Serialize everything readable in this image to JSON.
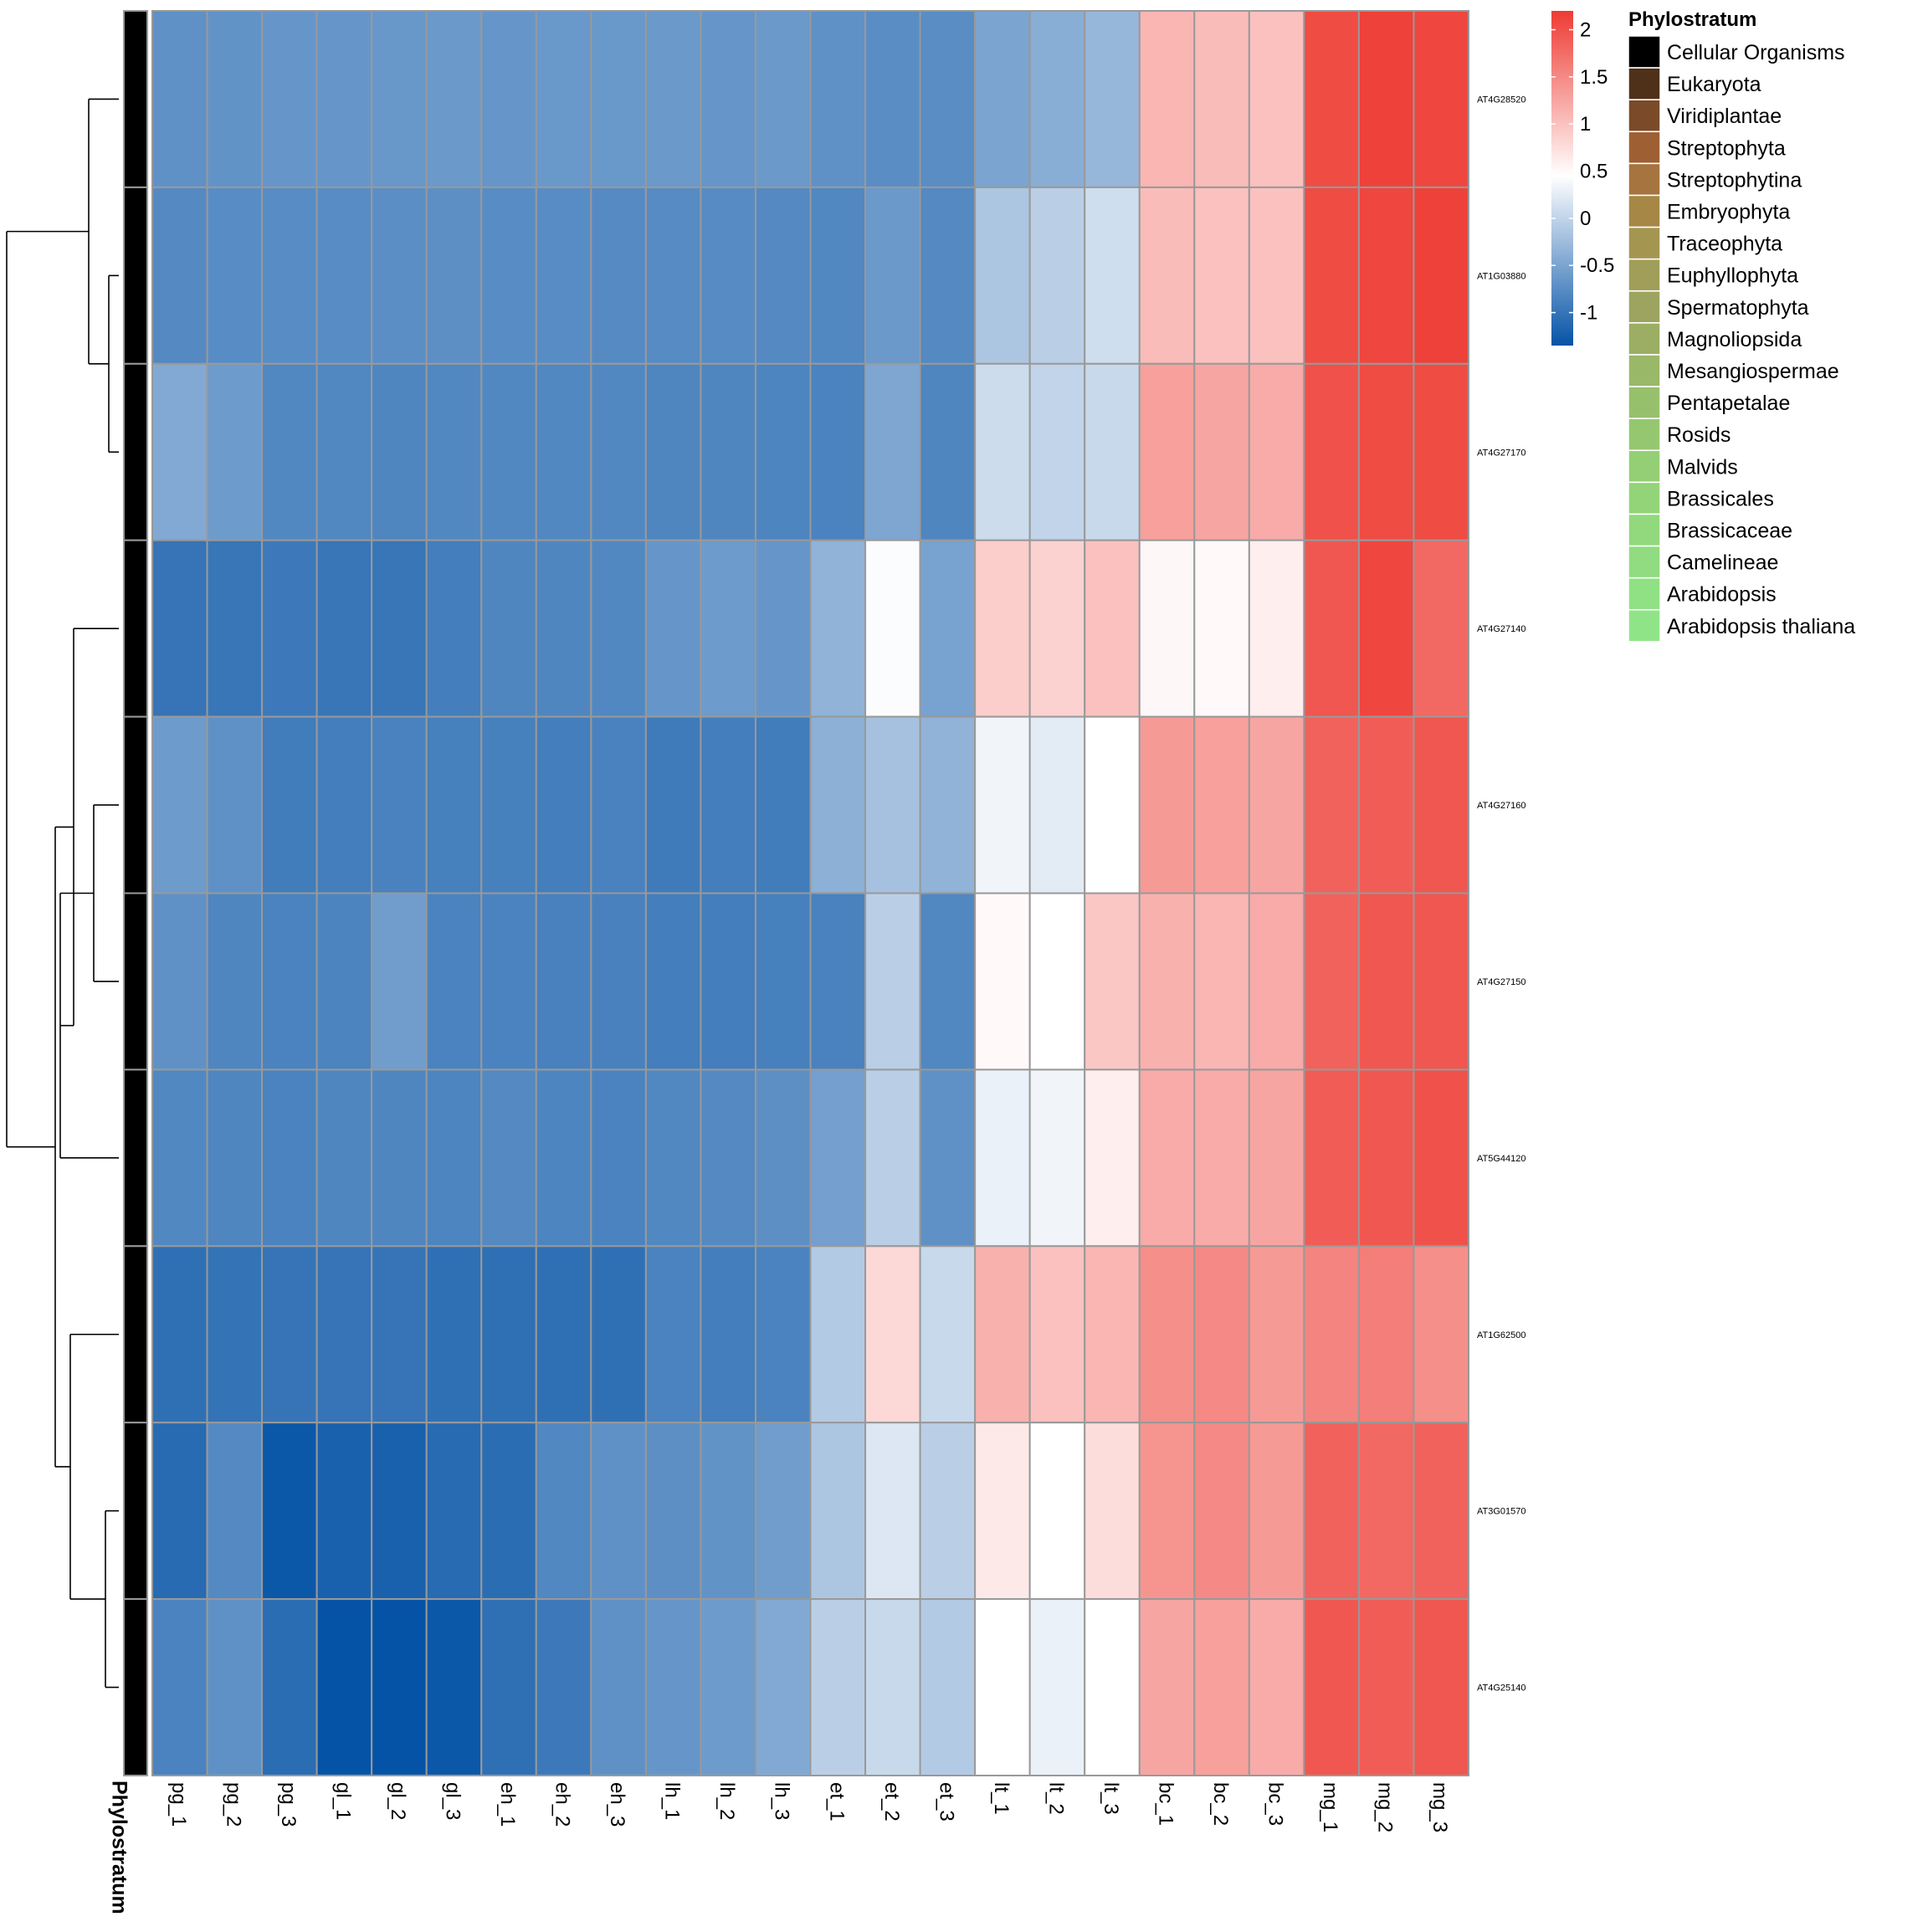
{
  "chart_data": {
    "type": "heatmap",
    "title": "",
    "columns": [
      "pg_1",
      "pg_2",
      "pg_3",
      "gl_1",
      "gl_2",
      "gl_3",
      "eh_1",
      "eh_2",
      "eh_3",
      "lh_1",
      "lh_2",
      "lh_3",
      "et_1",
      "et_2",
      "et_3",
      "lt_1",
      "lt_2",
      "lt_3",
      "bc_1",
      "bc_2",
      "bc_3",
      "mg_1",
      "mg_2",
      "mg_3"
    ],
    "rows": [
      "AT4G28520",
      "AT1G03880",
      "AT4G27170",
      "AT4G27140",
      "AT4G27160",
      "AT4G27150",
      "AT5G44120",
      "AT1G62500",
      "AT3G01570",
      "AT4G25140"
    ],
    "values": [
      [
        -0.7,
        -0.68,
        -0.65,
        -0.65,
        -0.64,
        -0.62,
        -0.65,
        -0.63,
        -0.63,
        -0.62,
        -0.65,
        -0.62,
        -0.7,
        -0.74,
        -0.74,
        -0.5,
        -0.4,
        -0.3,
        1.1,
        1.05,
        1.0,
        2.05,
        2.15,
        2.1
      ],
      [
        -0.78,
        -0.75,
        -0.75,
        -0.75,
        -0.73,
        -0.72,
        -0.75,
        -0.75,
        -0.77,
        -0.76,
        -0.76,
        -0.78,
        -0.8,
        -0.62,
        -0.78,
        -0.15,
        -0.05,
        0.1,
        1.05,
        1.0,
        1.0,
        2.05,
        2.1,
        2.15
      ],
      [
        -0.45,
        -0.6,
        -0.8,
        -0.8,
        -0.82,
        -0.8,
        -0.8,
        -0.8,
        -0.8,
        -0.82,
        -0.82,
        -0.83,
        -0.85,
        -0.48,
        -0.82,
        0.08,
        0.0,
        0.05,
        1.3,
        1.25,
        1.2,
        2.0,
        2.05,
        2.05
      ],
      [
        -1.0,
        -0.98,
        -0.95,
        -0.98,
        -0.98,
        -0.9,
        -0.82,
        -0.82,
        -0.8,
        -0.65,
        -0.6,
        -0.65,
        -0.35,
        0.42,
        -0.52,
        0.9,
        0.85,
        1.0,
        0.52,
        0.5,
        0.6,
        1.95,
        2.1,
        1.8
      ],
      [
        -0.6,
        -0.7,
        -0.92,
        -0.9,
        -0.86,
        -0.88,
        -0.88,
        -0.9,
        -0.86,
        -0.93,
        -0.9,
        -0.92,
        -0.38,
        -0.2,
        -0.35,
        0.35,
        0.25,
        0.45,
        1.35,
        1.3,
        1.25,
        1.85,
        1.9,
        1.95
      ],
      [
        -0.7,
        -0.82,
        -0.85,
        -0.84,
        -0.58,
        -0.85,
        -0.85,
        -0.87,
        -0.87,
        -0.9,
        -0.9,
        -0.88,
        -0.86,
        -0.05,
        -0.8,
        0.5,
        0.45,
        0.95,
        1.15,
        1.1,
        1.2,
        1.85,
        1.95,
        1.95
      ],
      [
        -0.8,
        -0.82,
        -0.85,
        -0.82,
        -0.82,
        -0.83,
        -0.78,
        -0.83,
        -0.85,
        -0.8,
        -0.78,
        -0.72,
        -0.55,
        -0.05,
        -0.7,
        0.3,
        0.35,
        0.6,
        1.2,
        1.2,
        1.25,
        1.9,
        1.95,
        2.0
      ],
      [
        -1.05,
        -1.02,
        -1.0,
        -1.0,
        -1.0,
        -1.05,
        -1.05,
        -1.05,
        -1.05,
        -0.85,
        -0.9,
        -0.85,
        -0.1,
        0.8,
        0.05,
        1.15,
        1.0,
        1.1,
        1.45,
        1.5,
        1.35,
        1.55,
        1.6,
        1.45
      ],
      [
        -1.1,
        -0.78,
        -1.3,
        -1.2,
        -1.2,
        -1.1,
        -1.08,
        -0.8,
        -0.7,
        -0.72,
        -0.68,
        -0.58,
        -0.15,
        0.2,
        -0.05,
        0.65,
        0.45,
        0.75,
        1.4,
        1.5,
        1.35,
        1.85,
        1.8,
        1.85
      ],
      [
        -0.85,
        -0.7,
        -1.08,
        -1.35,
        -1.35,
        -1.3,
        -1.05,
        -0.95,
        -0.7,
        -0.65,
        -0.6,
        -0.45,
        -0.05,
        0.05,
        -0.1,
        0.45,
        0.3,
        0.45,
        1.25,
        1.3,
        1.2,
        1.95,
        1.9,
        1.95
      ]
    ],
    "color_scale": {
      "low": "#0553A6",
      "mid": "#FFFFFF",
      "high": "#EE3B33",
      "min": -1.35,
      "mid_value": 0.45,
      "max": 2.2,
      "ticks": [
        "-1",
        "-0.5",
        "0",
        "0.5",
        "1",
        "1.5",
        "2"
      ],
      "tick_values": [
        -1,
        -0.5,
        0,
        0.5,
        1,
        1.5,
        2
      ]
    },
    "grid_color": "#999999",
    "annotation": {
      "label": "Phylostratum",
      "row_values": [
        "Cellular Organisms",
        "Cellular Organisms",
        "Cellular Organisms",
        "Cellular Organisms",
        "Cellular Organisms",
        "Cellular Organisms",
        "Cellular Organisms",
        "Cellular Organisms",
        "Cellular Organisms",
        "Cellular Organisms"
      ]
    },
    "legend": {
      "title": "Phylostratum",
      "items": [
        {
          "label": "Cellular Organisms",
          "color": "#000000"
        },
        {
          "label": "Eukaryota",
          "color": "#4F3019"
        },
        {
          "label": "Viridiplantae",
          "color": "#7A4A29"
        },
        {
          "label": "Streptophyta",
          "color": "#9E6033"
        },
        {
          "label": "Streptophytina",
          "color": "#A6743F"
        },
        {
          "label": "Embryophyta",
          "color": "#A68746"
        },
        {
          "label": "Traceophyta",
          "color": "#A49551"
        },
        {
          "label": "Euphyllophyta",
          "color": "#A09E58"
        },
        {
          "label": "Spermatophyta",
          "color": "#9DA45F"
        },
        {
          "label": "Magnoliopsida",
          "color": "#9BAE63"
        },
        {
          "label": "Mesangiospermae",
          "color": "#99B868"
        },
        {
          "label": "Pentapetalae",
          "color": "#97C06C"
        },
        {
          "label": "Rosids",
          "color": "#95C770"
        },
        {
          "label": "Malvids",
          "color": "#94CF75"
        },
        {
          "label": "Brassicales",
          "color": "#93D479"
        },
        {
          "label": "Brassicaceae",
          "color": "#92D87D"
        },
        {
          "label": "Camelineae",
          "color": "#91DB80"
        },
        {
          "label": "Arabidopsis",
          "color": "#90E084"
        },
        {
          "label": "Arabidopsis thaliana",
          "color": "#90E488"
        }
      ]
    },
    "dendrogram": {
      "note_omitted": false
    }
  }
}
